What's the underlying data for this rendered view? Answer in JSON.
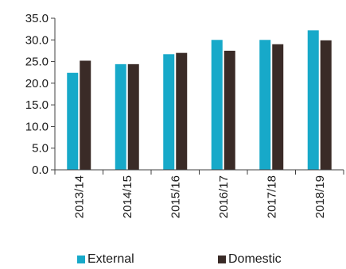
{
  "chart_data": {
    "type": "bar",
    "categories": [
      "2013/14",
      "2014/15",
      "2015/16",
      "2016/17",
      "2017/18",
      "2018/19"
    ],
    "series": [
      {
        "name": "External",
        "color": "#17a9c9",
        "values": [
          22.4,
          24.4,
          26.7,
          30.0,
          30.0,
          32.2
        ]
      },
      {
        "name": "Domestic",
        "color": "#3a2b27",
        "values": [
          25.2,
          24.4,
          27.0,
          27.5,
          29.0,
          29.9
        ]
      }
    ],
    "ylim": [
      0,
      35
    ],
    "yticks": [
      "0.0",
      "5.0",
      "10.0",
      "15.0",
      "20.0",
      "25.0",
      "30.0",
      "35.0"
    ],
    "legend_position": "bottom"
  }
}
